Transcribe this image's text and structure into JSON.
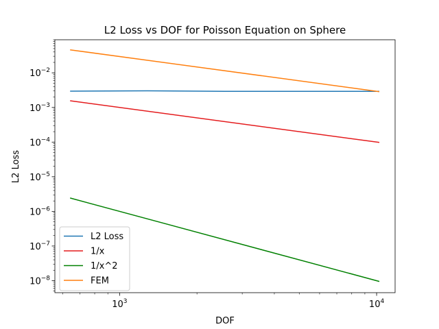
{
  "chart_data": {
    "type": "line",
    "title": "L2 Loss vs DOF for Poisson Equation on Sphere",
    "xlabel": "DOF",
    "ylabel": "L2 Loss",
    "xscale": "log",
    "yscale": "log",
    "xlim": [
      560,
      11800
    ],
    "ylim": [
      4.5e-09,
      0.09
    ],
    "x_ticks": [
      {
        "value": 1000,
        "base": "10",
        "exp": "3"
      },
      {
        "value": 10000,
        "base": "10",
        "exp": "4"
      }
    ],
    "y_ticks": [
      {
        "value": 1e-08,
        "base": "10",
        "exp": "−8"
      },
      {
        "value": 1e-07,
        "base": "10",
        "exp": "−7"
      },
      {
        "value": 1e-06,
        "base": "10",
        "exp": "−6"
      },
      {
        "value": 1e-05,
        "base": "10",
        "exp": "−5"
      },
      {
        "value": 0.0001,
        "base": "10",
        "exp": "−4"
      },
      {
        "value": 0.001,
        "base": "10",
        "exp": "−3"
      },
      {
        "value": 0.01,
        "base": "10",
        "exp": "−2"
      }
    ],
    "grid": false,
    "legend_position": "lower-left",
    "series": [
      {
        "name": "L2 Loss",
        "color": "#1f77b4",
        "x": [
          642,
          1282,
          2562,
          5122,
          10242
        ],
        "y": [
          0.00295,
          0.00302,
          0.00292,
          0.00293,
          0.00292
        ]
      },
      {
        "name": "1/x",
        "color": "#e41a1c",
        "x": [
          642,
          10242
        ],
        "y": [
          0.00156,
          9.76e-05
        ]
      },
      {
        "name": "1/x^2",
        "color": "#008000",
        "x": [
          642,
          10242
        ],
        "y": [
          2.43e-06,
          9.5e-09
        ]
      },
      {
        "name": "FEM",
        "color": "#ff7f0e",
        "x": [
          642,
          10242
        ],
        "y": [
          0.046,
          0.00286
        ]
      }
    ]
  }
}
